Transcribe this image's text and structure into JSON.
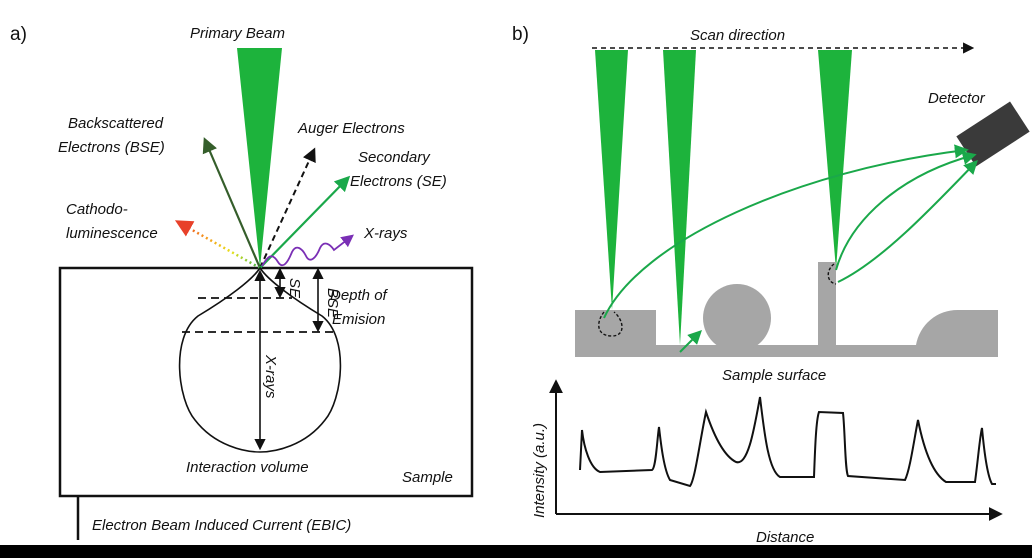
{
  "panel_a": {
    "tag": "a)",
    "primary_beam": "Primary Beam",
    "bse_line1": "Backscattered",
    "bse_line2": "Electrons (BSE)",
    "auger": "Auger Electrons",
    "se_line1": "Secondary",
    "se_line2": "Electrons (SE)",
    "cl_line1": "Cathodo-",
    "cl_line2": "luminescence",
    "xrays": "X-rays",
    "depth_line1": "Depth of",
    "depth_line2": "Emision",
    "se_short": "SE",
    "bse_short": "BSE",
    "xrays_vertical": "X-rays",
    "interaction_volume": "Interaction volume",
    "sample": "Sample",
    "ebic": "Electron Beam Induced Current (EBIC)"
  },
  "panel_b": {
    "tag": "b)",
    "scan_direction": "Scan direction",
    "detector": "Detector",
    "sample_surface": "Sample surface",
    "y_axis": "Intensity (a.u.)",
    "x_axis": "Distance"
  },
  "colors": {
    "beam_green": "#1db33c",
    "signal_green": "#1aa84a",
    "bse_dark_green": "#355e2b",
    "xray_purple": "#7a2fb5",
    "sample_gray": "#a6a6a6",
    "detector_gray": "#3a3a3a"
  },
  "icons": {
    "detector": "detector-box-icon"
  }
}
